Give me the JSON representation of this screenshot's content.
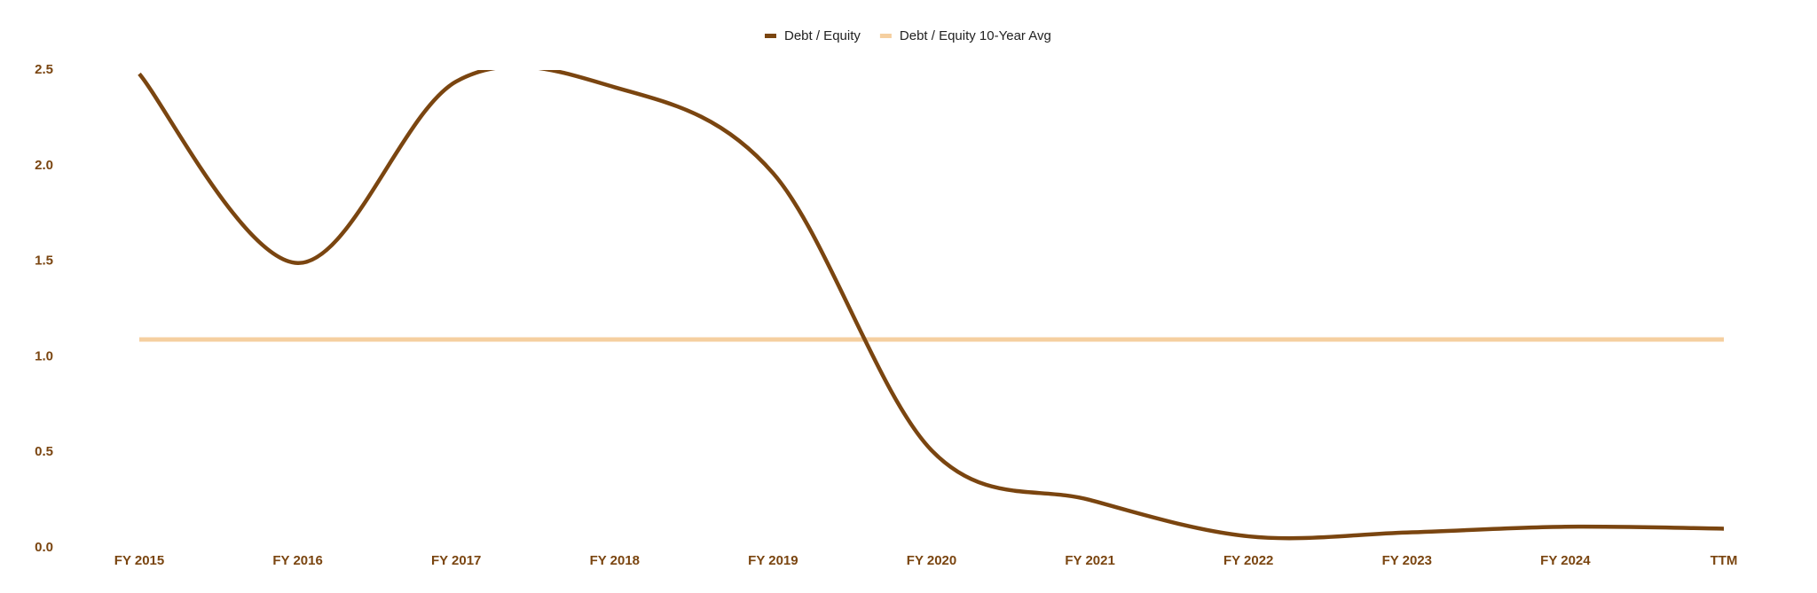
{
  "chart_data": {
    "type": "line",
    "categories": [
      "FY 2015",
      "FY 2016",
      "FY 2017",
      "FY 2018",
      "FY 2019",
      "FY 2020",
      "FY 2021",
      "FY 2022",
      "FY 2023",
      "FY 2024",
      "TTM"
    ],
    "series": [
      {
        "name": "Debt / Equity",
        "color": "#7a4510",
        "values": [
          2.48,
          1.49,
          2.44,
          2.41,
          1.96,
          0.51,
          0.25,
          0.06,
          0.08,
          0.11,
          0.1
        ]
      },
      {
        "name": "Debt / Equity 10-Year Avg",
        "color": "#f5cfa0",
        "values": [
          1.09,
          1.09,
          1.09,
          1.09,
          1.09,
          1.09,
          1.09,
          1.09,
          1.09,
          1.09,
          1.09
        ]
      }
    ],
    "ylim": [
      0,
      2.5
    ],
    "yticks": [
      {
        "value": 0,
        "label": "0.0"
      },
      0.5,
      {
        "value": 1,
        "label": "1.0"
      },
      1.5,
      {
        "value": 2,
        "label": "2.0"
      },
      2.5
    ],
    "legend": "top"
  }
}
